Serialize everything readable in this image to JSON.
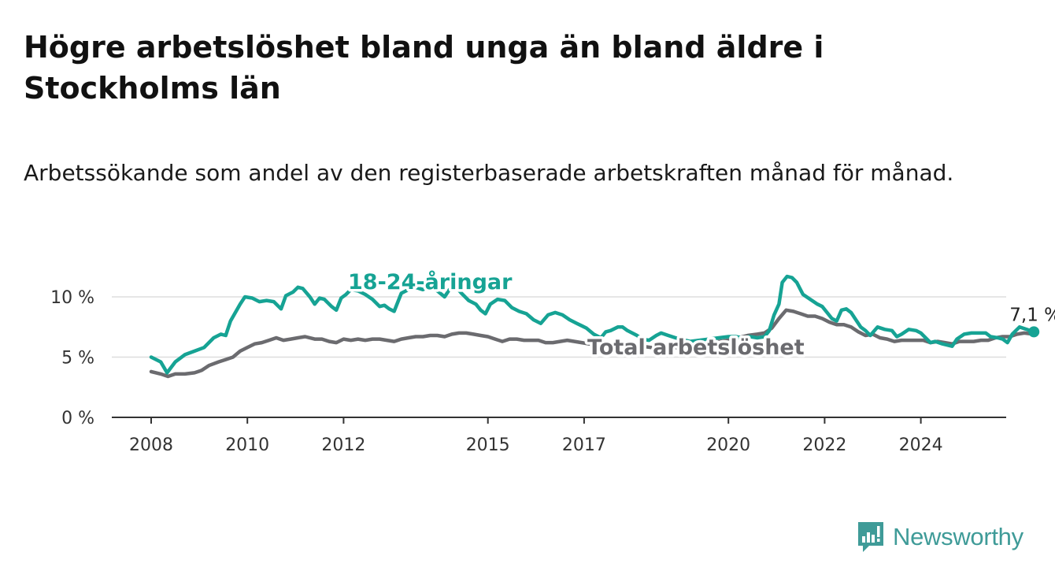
{
  "title": "Högre arbetslöshet bland unga än bland äldre i Stockholms län",
  "subtitle": "Arbetssökande som andel av den registerbaserade arbetskraften månad för månad.",
  "brand": {
    "name": "Newsworthy"
  },
  "colors": {
    "youth": "#16a394",
    "total": "#6b6b6f",
    "grid": "#dddddd",
    "axis": "#333333"
  },
  "chart_data": {
    "type": "line",
    "x_ticks": [
      "2008",
      "2010",
      "2012",
      "2015",
      "2017",
      "2020",
      "2022",
      "2024"
    ],
    "y_ticks": [
      "0 %",
      "5 %",
      "10 %"
    ],
    "ylim": [
      0,
      10.5
    ],
    "grid": true,
    "last_value_label": "7,1 %",
    "series": [
      {
        "name": "18-24-åringar",
        "points": [
          [
            2008.0,
            5.0
          ],
          [
            2008.2,
            4.6
          ],
          [
            2008.33,
            3.7
          ],
          [
            2008.5,
            4.6
          ],
          [
            2008.7,
            5.2
          ],
          [
            2008.9,
            5.5
          ],
          [
            2009.1,
            5.8
          ],
          [
            2009.3,
            6.6
          ],
          [
            2009.45,
            6.9
          ],
          [
            2009.55,
            6.8
          ],
          [
            2009.65,
            8.0
          ],
          [
            2009.85,
            9.4
          ],
          [
            2009.95,
            10.0
          ],
          [
            2010.1,
            9.9
          ],
          [
            2010.25,
            9.6
          ],
          [
            2010.4,
            9.7
          ],
          [
            2010.55,
            9.6
          ],
          [
            2010.7,
            9.0
          ],
          [
            2010.8,
            10.1
          ],
          [
            2010.95,
            10.4
          ],
          [
            2011.05,
            10.8
          ],
          [
            2011.15,
            10.7
          ],
          [
            2011.3,
            10.0
          ],
          [
            2011.4,
            9.4
          ],
          [
            2011.5,
            9.9
          ],
          [
            2011.6,
            9.8
          ],
          [
            2011.75,
            9.2
          ],
          [
            2011.85,
            8.9
          ],
          [
            2011.95,
            9.9
          ],
          [
            2012.05,
            10.2
          ],
          [
            2012.15,
            10.6
          ],
          [
            2012.3,
            10.5
          ],
          [
            2012.45,
            10.2
          ],
          [
            2012.6,
            9.8
          ],
          [
            2012.75,
            9.2
          ],
          [
            2012.85,
            9.3
          ],
          [
            2012.95,
            9.0
          ],
          [
            2013.05,
            8.8
          ],
          [
            2013.2,
            10.3
          ],
          [
            2013.35,
            10.6
          ],
          [
            2013.5,
            10.8
          ],
          [
            2013.65,
            10.6
          ],
          [
            2013.8,
            10.9
          ],
          [
            2013.95,
            10.5
          ],
          [
            2014.1,
            10.0
          ],
          [
            2014.2,
            10.6
          ],
          [
            2014.3,
            11.0
          ],
          [
            2014.45,
            10.3
          ],
          [
            2014.6,
            9.7
          ],
          [
            2014.75,
            9.4
          ],
          [
            2014.85,
            8.9
          ],
          [
            2014.95,
            8.6
          ],
          [
            2015.05,
            9.4
          ],
          [
            2015.2,
            9.8
          ],
          [
            2015.35,
            9.7
          ],
          [
            2015.5,
            9.1
          ],
          [
            2015.65,
            8.8
          ],
          [
            2015.8,
            8.6
          ],
          [
            2015.95,
            8.1
          ],
          [
            2016.1,
            7.8
          ],
          [
            2016.25,
            8.5
          ],
          [
            2016.4,
            8.7
          ],
          [
            2016.55,
            8.5
          ],
          [
            2016.7,
            8.1
          ],
          [
            2016.85,
            7.8
          ],
          [
            2016.95,
            7.6
          ],
          [
            2017.05,
            7.4
          ],
          [
            2017.2,
            6.9
          ],
          [
            2017.35,
            6.6
          ],
          [
            2017.45,
            7.1
          ],
          [
            2017.55,
            7.2
          ],
          [
            2017.7,
            7.5
          ],
          [
            2017.8,
            7.5
          ],
          [
            2017.9,
            7.2
          ],
          [
            2018.0,
            7.0
          ],
          [
            2018.1,
            6.8
          ],
          [
            2018.2,
            6.5
          ],
          [
            2018.35,
            6.4
          ],
          [
            2018.5,
            6.8
          ],
          [
            2018.6,
            7.0
          ],
          [
            2018.75,
            6.8
          ],
          [
            2018.9,
            6.6
          ],
          [
            2019.0,
            6.5
          ],
          [
            2019.2,
            6.3
          ],
          [
            2019.4,
            6.4
          ],
          [
            2019.6,
            6.5
          ],
          [
            2019.8,
            6.6
          ],
          [
            2020.0,
            6.7
          ],
          [
            2020.15,
            6.7
          ],
          [
            2020.3,
            6.6
          ],
          [
            2020.45,
            6.7
          ],
          [
            2020.6,
            6.6
          ],
          [
            2020.75,
            6.7
          ],
          [
            2020.85,
            7.2
          ],
          [
            2020.95,
            8.5
          ],
          [
            2021.05,
            9.4
          ],
          [
            2021.12,
            11.2
          ],
          [
            2021.22,
            11.7
          ],
          [
            2021.32,
            11.6
          ],
          [
            2021.42,
            11.2
          ],
          [
            2021.55,
            10.2
          ],
          [
            2021.7,
            9.8
          ],
          [
            2021.85,
            9.4
          ],
          [
            2021.95,
            9.2
          ],
          [
            2022.05,
            8.7
          ],
          [
            2022.15,
            8.2
          ],
          [
            2022.25,
            8.0
          ],
          [
            2022.35,
            8.9
          ],
          [
            2022.45,
            9.0
          ],
          [
            2022.55,
            8.7
          ],
          [
            2022.65,
            8.1
          ],
          [
            2022.75,
            7.5
          ],
          [
            2022.85,
            7.2
          ],
          [
            2022.95,
            6.8
          ],
          [
            2023.1,
            7.5
          ],
          [
            2023.25,
            7.3
          ],
          [
            2023.4,
            7.2
          ],
          [
            2023.5,
            6.7
          ],
          [
            2023.6,
            6.9
          ],
          [
            2023.75,
            7.3
          ],
          [
            2023.9,
            7.2
          ],
          [
            2024.0,
            7.0
          ],
          [
            2024.1,
            6.6
          ],
          [
            2024.2,
            6.2
          ],
          [
            2024.3,
            6.3
          ],
          [
            2024.45,
            6.1
          ],
          [
            2024.55,
            6.0
          ],
          [
            2024.65,
            5.9
          ],
          [
            2024.75,
            6.5
          ],
          [
            2024.9,
            6.9
          ],
          [
            2025.05,
            7.0
          ],
          [
            2025.2,
            7.0
          ],
          [
            2025.35,
            7.0
          ],
          [
            2025.45,
            6.7
          ],
          [
            2025.6,
            6.6
          ],
          [
            2025.7,
            6.5
          ],
          [
            2025.8,
            6.2
          ],
          [
            2025.9,
            6.9
          ],
          [
            2026.05,
            7.5
          ],
          [
            2026.2,
            7.3
          ],
          [
            2026.35,
            7.1
          ]
        ]
      },
      {
        "name": "Total arbetslöshet",
        "points": [
          [
            2008.0,
            3.8
          ],
          [
            2008.2,
            3.6
          ],
          [
            2008.35,
            3.4
          ],
          [
            2008.5,
            3.6
          ],
          [
            2008.7,
            3.6
          ],
          [
            2008.9,
            3.7
          ],
          [
            2009.05,
            3.9
          ],
          [
            2009.2,
            4.3
          ],
          [
            2009.4,
            4.6
          ],
          [
            2009.55,
            4.8
          ],
          [
            2009.7,
            5.0
          ],
          [
            2009.85,
            5.5
          ],
          [
            2010.0,
            5.8
          ],
          [
            2010.15,
            6.1
          ],
          [
            2010.3,
            6.2
          ],
          [
            2010.45,
            6.4
          ],
          [
            2010.6,
            6.6
          ],
          [
            2010.75,
            6.4
          ],
          [
            2010.9,
            6.5
          ],
          [
            2011.05,
            6.6
          ],
          [
            2011.2,
            6.7
          ],
          [
            2011.4,
            6.5
          ],
          [
            2011.55,
            6.5
          ],
          [
            2011.7,
            6.3
          ],
          [
            2011.85,
            6.2
          ],
          [
            2012.0,
            6.5
          ],
          [
            2012.15,
            6.4
          ],
          [
            2012.3,
            6.5
          ],
          [
            2012.45,
            6.4
          ],
          [
            2012.6,
            6.5
          ],
          [
            2012.75,
            6.5
          ],
          [
            2012.9,
            6.4
          ],
          [
            2013.05,
            6.3
          ],
          [
            2013.2,
            6.5
          ],
          [
            2013.35,
            6.6
          ],
          [
            2013.5,
            6.7
          ],
          [
            2013.65,
            6.7
          ],
          [
            2013.8,
            6.8
          ],
          [
            2013.95,
            6.8
          ],
          [
            2014.1,
            6.7
          ],
          [
            2014.25,
            6.9
          ],
          [
            2014.4,
            7.0
          ],
          [
            2014.55,
            7.0
          ],
          [
            2014.7,
            6.9
          ],
          [
            2014.85,
            6.8
          ],
          [
            2015.0,
            6.7
          ],
          [
            2015.15,
            6.5
          ],
          [
            2015.3,
            6.3
          ],
          [
            2015.45,
            6.5
          ],
          [
            2015.6,
            6.5
          ],
          [
            2015.75,
            6.4
          ],
          [
            2015.9,
            6.4
          ],
          [
            2016.05,
            6.4
          ],
          [
            2016.2,
            6.2
          ],
          [
            2016.35,
            6.2
          ],
          [
            2016.5,
            6.3
          ],
          [
            2016.65,
            6.4
          ],
          [
            2016.8,
            6.3
          ],
          [
            2016.95,
            6.2
          ],
          [
            2017.1,
            6.1
          ],
          [
            2017.25,
            6.0
          ],
          [
            2017.4,
            6.0
          ],
          [
            2017.55,
            6.1
          ],
          [
            2017.7,
            6.1
          ],
          [
            2017.85,
            6.0
          ],
          [
            2018.0,
            6.0
          ],
          [
            2018.2,
            5.9
          ],
          [
            2018.4,
            5.8
          ],
          [
            2018.6,
            5.9
          ],
          [
            2018.8,
            5.8
          ],
          [
            2019.0,
            5.8
          ],
          [
            2019.2,
            5.9
          ],
          [
            2019.4,
            6.0
          ],
          [
            2019.6,
            6.1
          ],
          [
            2019.8,
            6.3
          ],
          [
            2020.0,
            6.4
          ],
          [
            2020.2,
            6.6
          ],
          [
            2020.4,
            6.8
          ],
          [
            2020.6,
            6.9
          ],
          [
            2020.75,
            7.0
          ],
          [
            2020.9,
            7.4
          ],
          [
            2021.05,
            8.2
          ],
          [
            2021.2,
            8.9
          ],
          [
            2021.35,
            8.8
          ],
          [
            2021.5,
            8.6
          ],
          [
            2021.65,
            8.4
          ],
          [
            2021.8,
            8.4
          ],
          [
            2021.95,
            8.2
          ],
          [
            2022.1,
            7.9
          ],
          [
            2022.25,
            7.7
          ],
          [
            2022.4,
            7.7
          ],
          [
            2022.55,
            7.5
          ],
          [
            2022.7,
            7.1
          ],
          [
            2022.85,
            6.8
          ],
          [
            2023.0,
            6.9
          ],
          [
            2023.15,
            6.6
          ],
          [
            2023.3,
            6.5
          ],
          [
            2023.45,
            6.3
          ],
          [
            2023.6,
            6.4
          ],
          [
            2023.75,
            6.4
          ],
          [
            2023.9,
            6.4
          ],
          [
            2024.05,
            6.4
          ],
          [
            2024.2,
            6.2
          ],
          [
            2024.35,
            6.3
          ],
          [
            2024.5,
            6.2
          ],
          [
            2024.65,
            6.1
          ],
          [
            2024.8,
            6.3
          ],
          [
            2024.95,
            6.3
          ],
          [
            2025.1,
            6.3
          ],
          [
            2025.25,
            6.4
          ],
          [
            2025.4,
            6.4
          ],
          [
            2025.55,
            6.6
          ],
          [
            2025.7,
            6.7
          ],
          [
            2025.85,
            6.7
          ],
          [
            2026.0,
            6.9
          ],
          [
            2026.15,
            7.0
          ],
          [
            2026.35,
            6.9
          ]
        ]
      }
    ]
  }
}
